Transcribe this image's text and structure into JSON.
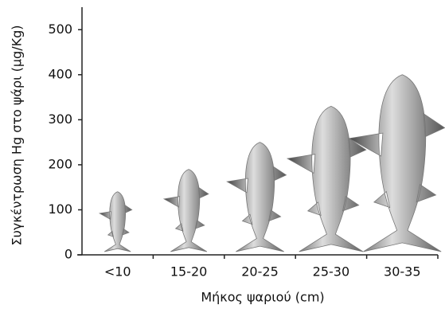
{
  "chart_data": {
    "type": "pictogram",
    "x_label": "Μήκος ψαριού (cm)",
    "y_label": "Συγκέντρωση Hg στο ψάρι (μg/Kg)",
    "categories": [
      "<10",
      "15-20",
      "20-25",
      "25-30",
      "30-35"
    ],
    "values": [
      140,
      190,
      250,
      330,
      400
    ],
    "color": "#777777",
    "ylim": [
      0,
      550
    ],
    "yticks": [
      0,
      100,
      200,
      300,
      400,
      500
    ],
    "grid": false
  }
}
